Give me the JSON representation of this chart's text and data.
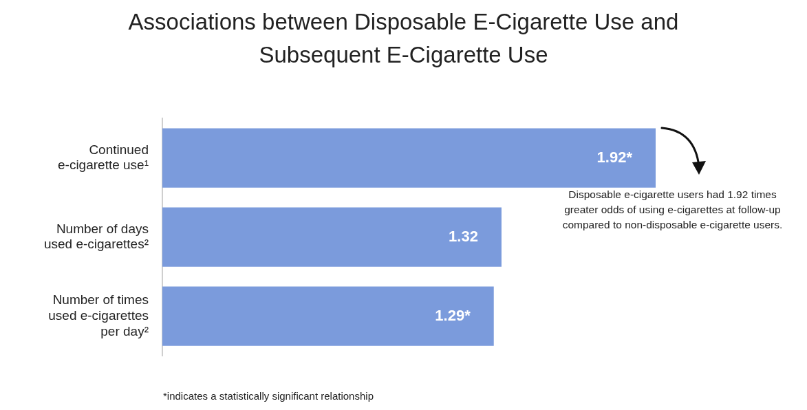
{
  "chart_data": {
    "type": "bar",
    "orientation": "horizontal",
    "title": "Associations between Disposable E-Cigarette Use and Subsequent E-Cigarette Use",
    "categories": [
      "Continued e-cigarette use¹",
      "Number of days used e-cigarettes²",
      "Number of times used e-cigarettes per day²"
    ],
    "values": [
      1.92,
      1.32,
      1.29
    ],
    "value_labels": [
      "1.92*",
      "1.32",
      "1.29*"
    ],
    "color": "#7b9bdc",
    "annotations": [
      "Disposable e-cigarette users had 1.92 times greater odds of using e-cigarettes at follow-up compared to non-disposable e-cigarette users.",
      "*indicates a statistically significant relationship"
    ]
  }
}
